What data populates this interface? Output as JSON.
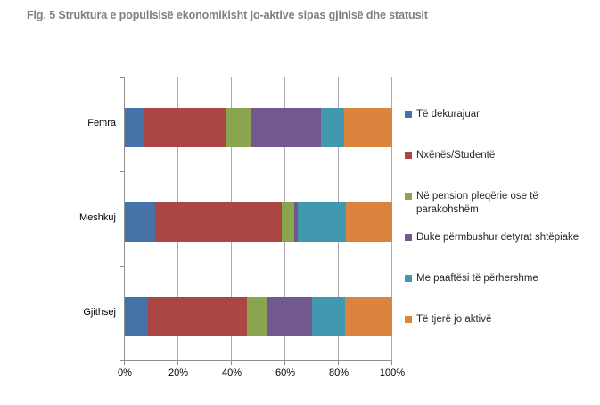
{
  "title": "Fig. 5 Struktura e popullsisë ekonomikisht jo-aktive sipas gjinisë dhe statusit",
  "chart_data": {
    "type": "bar",
    "orientation": "horizontal",
    "stacked": true,
    "unit": "%",
    "categories": [
      "Femra",
      "Meshkuj",
      "Gjithsej"
    ],
    "series": [
      {
        "name": "Të dekurajuar",
        "color": "#4572A7",
        "values": [
          7.3,
          11.3,
          8.7
        ]
      },
      {
        "name": "Nxënës/Studentë",
        "color": "#AA4643",
        "values": [
          30.3,
          47.3,
          37.0
        ]
      },
      {
        "name": "Në pension pleqërie ose të parakohshëm",
        "color": "#89A54E",
        "values": [
          9.7,
          4.7,
          7.3
        ]
      },
      {
        "name": "Duke përmbushur detyrat shtëpiake",
        "color": "#71588F",
        "values": [
          26.0,
          1.3,
          17.0
        ]
      },
      {
        "name": "Me paaftësi të përhershme",
        "color": "#4198AF",
        "values": [
          8.7,
          18.0,
          12.3
        ]
      },
      {
        "name": "Të tjerë jo aktivë",
        "color": "#DB843D",
        "values": [
          18.0,
          17.4,
          17.7
        ]
      }
    ],
    "x_ticks": [
      "0%",
      "20%",
      "40%",
      "60%",
      "80%",
      "100%"
    ],
    "xlim": [
      0,
      100
    ],
    "grid": true,
    "legend_position": "right"
  },
  "colors": {
    "title_text": "#808080",
    "axis": "#8F8F8F",
    "grid": "#ABABAB",
    "tick_text": "#000000",
    "legend_text": "#262626",
    "background": "#FFFFFF"
  }
}
